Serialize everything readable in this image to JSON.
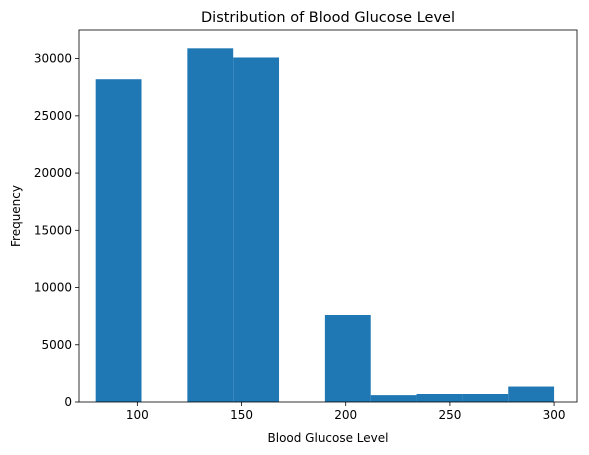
{
  "chart_data": {
    "type": "bar",
    "title": "Distribution of Blood Glucose Level",
    "xlabel": "Blood Glucose Level",
    "ylabel": "Frequency",
    "xlim": [
      72,
      311
    ],
    "ylim": [
      0,
      32500
    ],
    "bins": [
      {
        "x0": 80,
        "x1": 102,
        "count": 28200
      },
      {
        "x0": 102,
        "x1": 124,
        "count": 0
      },
      {
        "x0": 124,
        "x1": 146,
        "count": 30900
      },
      {
        "x0": 146,
        "x1": 168,
        "count": 30100
      },
      {
        "x0": 168,
        "x1": 190,
        "count": 0
      },
      {
        "x0": 190,
        "x1": 212,
        "count": 7600
      },
      {
        "x0": 212,
        "x1": 234,
        "count": 600
      },
      {
        "x0": 234,
        "x1": 256,
        "count": 700
      },
      {
        "x0": 256,
        "x1": 278,
        "count": 700
      },
      {
        "x0": 278,
        "x1": 300,
        "count": 1350
      }
    ],
    "xticks": [
      100,
      150,
      200,
      250,
      300
    ],
    "yticks": [
      0,
      5000,
      10000,
      15000,
      20000,
      25000,
      30000
    ],
    "bar_color": "#1f77b4",
    "grid": false,
    "legend": "none"
  }
}
